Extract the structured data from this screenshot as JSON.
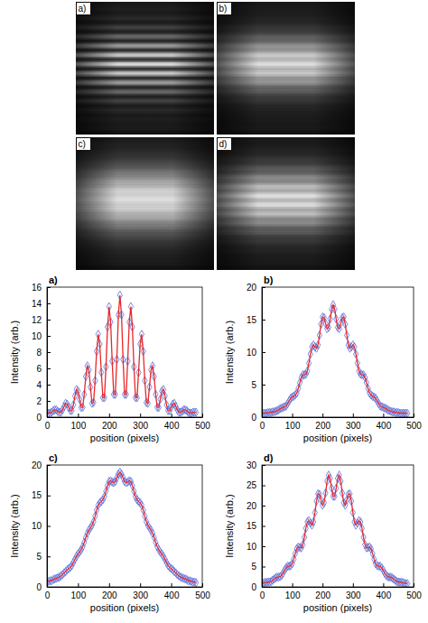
{
  "images": {
    "labels": [
      "a)",
      "b)",
      "c)",
      "d)"
    ]
  },
  "chart_data": [
    {
      "type": "line",
      "title": "a)",
      "x_label": "position (pixels)",
      "y_label": "Intensity (arb.)",
      "x": [
        0,
        5,
        10,
        15,
        20,
        25,
        30,
        35,
        40,
        45,
        50,
        55,
        60,
        65,
        70,
        75,
        80,
        85,
        90,
        95,
        100,
        105,
        110,
        115,
        120,
        125,
        130,
        135,
        140,
        145,
        150,
        155,
        160,
        165,
        170,
        175,
        180,
        185,
        190,
        195,
        200,
        205,
        210,
        215,
        220,
        225,
        230,
        235,
        240,
        245,
        250,
        255,
        260,
        265,
        270,
        275,
        280,
        285,
        290,
        295,
        300,
        305,
        310,
        315,
        320,
        325,
        330,
        335,
        340,
        345,
        350,
        355,
        360,
        365,
        370,
        375,
        380,
        385,
        390,
        395,
        400,
        405,
        410,
        415,
        420,
        425,
        430,
        435,
        440,
        445,
        450,
        455,
        460,
        465,
        470,
        475,
        480
      ],
      "series": [
        {
          "color": "#e8282b",
          "marker": "diamond",
          "line_style": "solid",
          "values": [
            0.6,
            0.5,
            0.5,
            0.6,
            0.8,
            0.9,
            0.9,
            0.7,
            0.6,
            0.6,
            0.9,
            1.3,
            1.7,
            1.6,
            1.2,
            0.8,
            0.8,
            1.5,
            2.6,
            3.4,
            3.2,
            2.2,
            1.2,
            1.2,
            2.8,
            5.0,
            6.3,
            5.8,
            3.7,
            1.7,
            1.8,
            4.5,
            8.1,
            10.2,
            9.0,
            5.5,
            2.4,
            2.4,
            6.2,
            11.1,
            13.6,
            11.7,
            6.9,
            2.8,
            2.8,
            7.1,
            12.6,
            15.0,
            12.6,
            7.1,
            2.8,
            2.8,
            6.9,
            11.7,
            13.6,
            11.1,
            6.2,
            2.4,
            2.4,
            5.5,
            9.0,
            10.2,
            8.1,
            4.5,
            1.8,
            1.7,
            3.7,
            5.8,
            6.3,
            5.0,
            2.8,
            1.2,
            1.2,
            2.2,
            3.2,
            3.4,
            2.6,
            1.5,
            0.8,
            0.8,
            1.2,
            1.6,
            1.7,
            1.3,
            0.9,
            0.6,
            0.6,
            0.7,
            0.9,
            0.9,
            0.8,
            0.6,
            0.5,
            0.5,
            0.6,
            0.6,
            0.6
          ]
        }
      ],
      "xlim": [
        0,
        500
      ],
      "xticks": [
        0,
        100,
        200,
        300,
        400,
        500
      ],
      "ylim": [
        0,
        16
      ],
      "yticks": [
        0,
        2,
        4,
        6,
        8,
        10,
        12,
        14,
        16
      ]
    },
    {
      "type": "line",
      "title": "b)",
      "x_label": "position (pixels)",
      "y_label": "Intensity (arb.)",
      "x": [
        0,
        5,
        10,
        15,
        20,
        25,
        30,
        35,
        40,
        45,
        50,
        55,
        60,
        65,
        70,
        75,
        80,
        85,
        90,
        95,
        100,
        105,
        110,
        115,
        120,
        125,
        130,
        135,
        140,
        145,
        150,
        155,
        160,
        165,
        170,
        175,
        180,
        185,
        190,
        195,
        200,
        205,
        210,
        215,
        220,
        225,
        230,
        235,
        240,
        245,
        250,
        255,
        260,
        265,
        270,
        275,
        280,
        285,
        290,
        295,
        300,
        305,
        310,
        315,
        320,
        325,
        330,
        335,
        340,
        345,
        350,
        355,
        360,
        365,
        370,
        375,
        380,
        385,
        390,
        395,
        400,
        405,
        410,
        415,
        420,
        425,
        430,
        435,
        440,
        445,
        450,
        455,
        460,
        465,
        470,
        475,
        480
      ],
      "series": [
        {
          "color": "#e8282b",
          "marker": "diamond",
          "line_style": "solid",
          "values": [
            0.6,
            0.6,
            0.6,
            0.6,
            0.7,
            0.7,
            0.7,
            0.8,
            0.8,
            0.9,
            1.0,
            1.1,
            1.3,
            1.4,
            1.5,
            1.6,
            1.7,
            2.1,
            2.5,
            2.9,
            3.1,
            3.2,
            3.4,
            3.7,
            4.4,
            5.3,
            6.1,
            6.5,
            6.5,
            6.6,
            7.1,
            8.3,
            9.7,
            10.8,
            11.1,
            10.8,
            10.6,
            11.1,
            12.6,
            14.3,
            15.4,
            15.3,
            14.4,
            13.6,
            13.8,
            15.1,
            16.6,
            17.3,
            16.6,
            15.1,
            13.8,
            13.6,
            14.4,
            15.3,
            15.4,
            14.3,
            12.6,
            11.1,
            10.6,
            10.8,
            11.1,
            10.8,
            9.7,
            8.3,
            7.1,
            6.6,
            6.5,
            6.5,
            6.1,
            5.3,
            4.4,
            3.7,
            3.4,
            3.2,
            3.1,
            2.9,
            2.5,
            2.1,
            1.7,
            1.6,
            1.5,
            1.4,
            1.3,
            1.1,
            1.0,
            0.9,
            0.8,
            0.8,
            0.7,
            0.7,
            0.7,
            0.6,
            0.6,
            0.6,
            0.6,
            0.6,
            0.6
          ]
        }
      ],
      "xlim": [
        0,
        500
      ],
      "xticks": [
        0,
        100,
        200,
        300,
        400,
        500
      ],
      "ylim": [
        0,
        20
      ],
      "yticks": [
        0,
        5,
        10,
        15,
        20
      ]
    },
    {
      "type": "line",
      "title": "c)",
      "x_label": "position (pixels)",
      "y_label": "Intensity (arb.)",
      "x": [
        0,
        5,
        10,
        15,
        20,
        25,
        30,
        35,
        40,
        45,
        50,
        55,
        60,
        65,
        70,
        75,
        80,
        85,
        90,
        95,
        100,
        105,
        110,
        115,
        120,
        125,
        130,
        135,
        140,
        145,
        150,
        155,
        160,
        165,
        170,
        175,
        180,
        185,
        190,
        195,
        200,
        205,
        210,
        215,
        220,
        225,
        230,
        235,
        240,
        245,
        250,
        255,
        260,
        265,
        270,
        275,
        280,
        285,
        290,
        295,
        300,
        305,
        310,
        315,
        320,
        325,
        330,
        335,
        340,
        345,
        350,
        355,
        360,
        365,
        370,
        375,
        380,
        385,
        390,
        395,
        400,
        405,
        410,
        415,
        420,
        425,
        430,
        435,
        440,
        445,
        450,
        455,
        460,
        465,
        470,
        475,
        480
      ],
      "series": [
        {
          "color": "#e8282b",
          "marker": "diamond",
          "line_style": "solid",
          "values": [
            0.8,
            0.9,
            1.0,
            1.0,
            1.2,
            1.3,
            1.4,
            1.5,
            1.6,
            1.8,
            2.0,
            2.3,
            2.5,
            2.8,
            3.0,
            3.2,
            3.5,
            4.0,
            4.5,
            5.0,
            5.4,
            5.7,
            6.1,
            6.6,
            7.3,
            8.1,
            8.8,
            9.3,
            9.7,
            10.1,
            10.7,
            11.6,
            12.6,
            13.4,
            13.8,
            14.0,
            14.3,
            14.8,
            15.7,
            16.6,
            17.3,
            17.4,
            17.2,
            17.1,
            17.3,
            17.9,
            18.5,
            18.8,
            18.5,
            17.9,
            17.3,
            17.1,
            17.2,
            17.4,
            17.3,
            16.6,
            15.7,
            14.8,
            14.3,
            14.0,
            13.8,
            13.4,
            12.6,
            11.6,
            10.7,
            10.1,
            9.7,
            9.3,
            8.8,
            8.1,
            7.3,
            6.6,
            6.1,
            5.7,
            5.4,
            5.0,
            4.5,
            4.0,
            3.5,
            3.2,
            3.0,
            2.8,
            2.5,
            2.3,
            2.0,
            1.8,
            1.6,
            1.5,
            1.4,
            1.3,
            1.2,
            1.0,
            1.0,
            0.9,
            0.8,
            0.8,
            0.7
          ]
        }
      ],
      "xlim": [
        0,
        500
      ],
      "xticks": [
        0,
        100,
        200,
        300,
        400,
        500
      ],
      "ylim": [
        0,
        20
      ],
      "yticks": [
        0,
        5,
        10,
        15,
        20
      ]
    },
    {
      "type": "line",
      "title": "d)",
      "x_label": "position (pixels)",
      "y_label": "Intensity (arb.)",
      "x": [
        0,
        5,
        10,
        15,
        20,
        25,
        30,
        35,
        40,
        45,
        50,
        55,
        60,
        65,
        70,
        75,
        80,
        85,
        90,
        95,
        100,
        105,
        110,
        115,
        120,
        125,
        130,
        135,
        140,
        145,
        150,
        155,
        160,
        165,
        170,
        175,
        180,
        185,
        190,
        195,
        200,
        205,
        210,
        215,
        220,
        225,
        230,
        235,
        240,
        245,
        250,
        255,
        260,
        265,
        270,
        275,
        280,
        285,
        290,
        295,
        300,
        305,
        310,
        315,
        320,
        325,
        330,
        335,
        340,
        345,
        350,
        355,
        360,
        365,
        370,
        375,
        380,
        385,
        390,
        395,
        400,
        405,
        410,
        415,
        420,
        425,
        430,
        435,
        440,
        445,
        450,
        455,
        460,
        465,
        470,
        475,
        480
      ],
      "series": [
        {
          "color": "#e8282b",
          "marker": "diamond",
          "line_style": "solid",
          "values": [
            0.8,
            0.9,
            1.1,
            1.1,
            1.2,
            1.2,
            1.3,
            1.6,
            1.9,
            2.2,
            2.4,
            2.4,
            2.5,
            2.8,
            3.4,
            4.1,
            4.7,
            5.1,
            5.1,
            5.2,
            5.7,
            6.8,
            8.2,
            9.4,
            9.8,
            9.7,
            9.6,
            10.4,
            12.2,
            14.4,
            16.0,
            16.3,
            15.7,
            15.2,
            16.0,
            18.3,
            21.1,
            22.9,
            22.8,
            21.4,
            20.1,
            20.7,
            23.1,
            26.0,
            27.5,
            26.7,
            24.3,
            22.3,
            22.3,
            24.3,
            26.7,
            27.5,
            26.0,
            23.1,
            20.7,
            20.1,
            21.4,
            22.8,
            22.9,
            21.1,
            18.3,
            16.0,
            15.2,
            15.7,
            16.3,
            16.0,
            14.4,
            12.2,
            10.4,
            9.6,
            9.7,
            9.8,
            9.4,
            8.2,
            6.8,
            5.7,
            5.2,
            5.1,
            5.1,
            4.7,
            4.1,
            3.4,
            2.8,
            2.5,
            2.4,
            2.4,
            2.2,
            1.9,
            1.6,
            1.3,
            1.2,
            1.2,
            1.1,
            1.1,
            0.9,
            0.8,
            0.8
          ]
        }
      ],
      "xlim": [
        0,
        500
      ],
      "xticks": [
        0,
        100,
        200,
        300,
        400,
        500
      ],
      "ylim": [
        0,
        30
      ],
      "yticks": [
        0,
        5,
        10,
        15,
        20,
        25,
        30
      ]
    }
  ]
}
